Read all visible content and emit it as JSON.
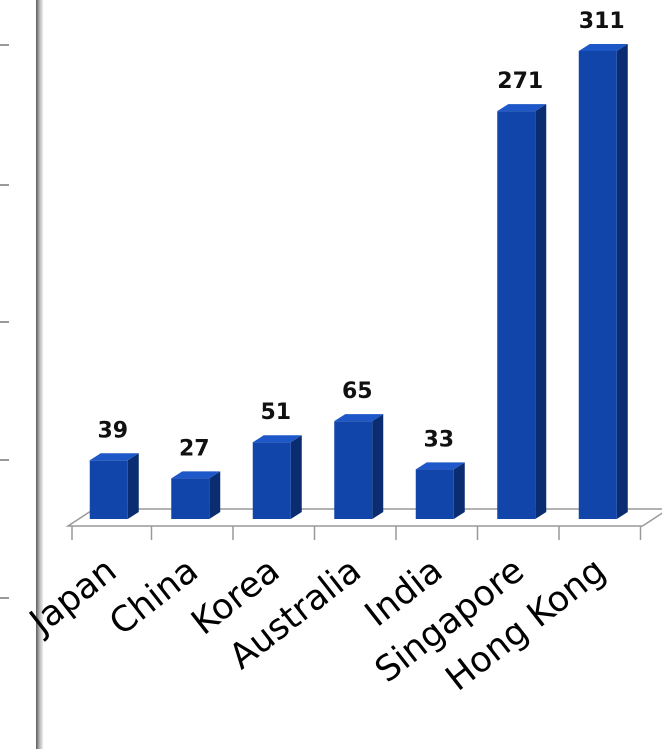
{
  "chart_data": {
    "type": "bar",
    "title": "",
    "xlabel": "",
    "ylabel": "",
    "categories": [
      "Japan",
      "China",
      "Korea",
      "Australia",
      "India",
      "Singapore",
      "Hong Kong"
    ],
    "values": [
      39,
      27,
      51,
      65,
      33,
      271,
      311
    ],
    "data_labels": [
      "39",
      "27",
      "51",
      "65",
      "33",
      "271",
      "311"
    ],
    "ylim": [
      0,
      320
    ],
    "grid": false,
    "legend": "none",
    "style": "3d-column",
    "colors": {
      "bar_front": "#1145AA",
      "bar_side": "#0A2C70",
      "bar_top": "#1E58C8",
      "floor_line": "#999999",
      "axis_border": "#8A8A8A"
    }
  }
}
